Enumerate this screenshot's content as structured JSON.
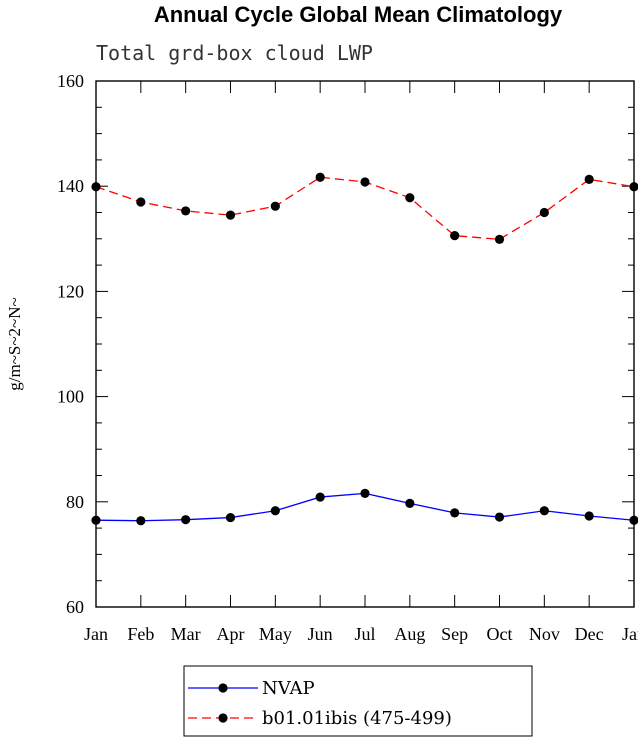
{
  "chart_data": {
    "type": "line",
    "title": "Annual Cycle Global Mean Climatology",
    "subtitle": "Total grd-box cloud LWP",
    "xlabel": "",
    "ylabel": "g/m~S~2~N~",
    "categories": [
      "Jan",
      "Feb",
      "Mar",
      "Apr",
      "May",
      "Jun",
      "Jul",
      "Aug",
      "Sep",
      "Oct",
      "Nov",
      "Dec",
      "Jan"
    ],
    "ylim": [
      60,
      160
    ],
    "yticks": [
      60,
      80,
      100,
      120,
      140,
      160
    ],
    "grid": false,
    "legend_position": "bottom",
    "series": [
      {
        "name": "NVAP",
        "color": "#0000ff",
        "dash": "solid",
        "values": [
          76.5,
          76.4,
          76.6,
          77.0,
          78.3,
          80.9,
          81.6,
          79.7,
          77.9,
          77.1,
          78.3,
          77.3,
          76.5
        ]
      },
      {
        "name": "b01.01ibis (475-499)",
        "color": "#ff0000",
        "dash": "dashed",
        "values": [
          139.9,
          137.0,
          135.3,
          134.5,
          136.2,
          141.7,
          140.8,
          137.8,
          130.6,
          129.9,
          135.0,
          141.3,
          139.9
        ]
      }
    ]
  }
}
